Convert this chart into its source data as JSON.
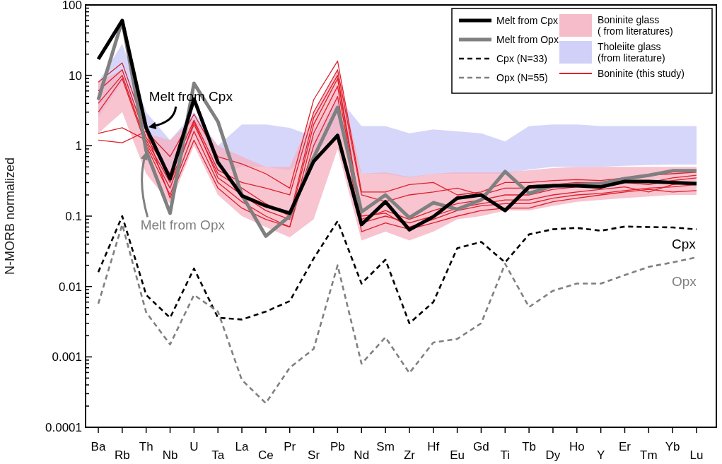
{
  "chart_data": {
    "type": "line",
    "ylabel": "N-MORB normalized",
    "log": true,
    "grid": false,
    "legend": "top right",
    "marker": "none",
    "categories": [
      "Ba",
      "Rb",
      "Th",
      "Nb",
      "U",
      "Ta",
      "La",
      "Ce",
      "Pr",
      "Sr",
      "Pb",
      "Nd",
      "Sm",
      "Zr",
      "Hf",
      "Eu",
      "Gd",
      "Ti",
      "Tb",
      "Dy",
      "Ho",
      "Y",
      "Er",
      "Tm",
      "Yb",
      "Lu"
    ],
    "ylim": [
      0.0001,
      100
    ],
    "yticks": [
      0.0001,
      {
        "value": 0.0002,
        "label": null
      },
      {
        "value": 0.0003,
        "label": null
      },
      {
        "value": 0.0004,
        "label": null
      },
      {
        "value": 0.0005,
        "label": null
      },
      {
        "value": 0.0006,
        "label": null
      },
      {
        "value": 0.0007,
        "label": null
      },
      {
        "value": 0.0008,
        "label": null
      },
      {
        "value": 0.0009,
        "label": null
      },
      0.001,
      {
        "value": 0.002,
        "label": null
      },
      {
        "value": 0.003,
        "label": null
      },
      {
        "value": 0.004,
        "label": null
      },
      {
        "value": 0.005,
        "label": null
      },
      {
        "value": 0.006,
        "label": null
      },
      {
        "value": 0.007,
        "label": null
      },
      {
        "value": 0.008,
        "label": null
      },
      {
        "value": 0.009,
        "label": null
      },
      0.01,
      {
        "value": 0.02,
        "label": null
      },
      {
        "value": 0.03,
        "label": null
      },
      {
        "value": 0.04,
        "label": null
      },
      {
        "value": 0.05,
        "label": null
      },
      {
        "value": 0.06,
        "label": null
      },
      {
        "value": 0.07,
        "label": null
      },
      {
        "value": 0.08,
        "label": null
      },
      {
        "value": 0.09,
        "label": null
      },
      0.1,
      {
        "value": 0.2,
        "label": null
      },
      {
        "value": 0.3,
        "label": null
      },
      {
        "value": 0.4,
        "label": null
      },
      {
        "value": 0.5,
        "label": null
      },
      {
        "value": 0.6,
        "label": null
      },
      {
        "value": 0.7,
        "label": null
      },
      {
        "value": 0.8,
        "label": null
      },
      {
        "value": 0.9,
        "label": null
      },
      1,
      {
        "value": 2,
        "label": null
      },
      {
        "value": 3,
        "label": null
      },
      {
        "value": 4,
        "label": null
      },
      {
        "value": 5,
        "label": null
      },
      {
        "value": 6,
        "label": null
      },
      {
        "value": 7,
        "label": null
      },
      {
        "value": 8,
        "label": null
      },
      {
        "value": 9,
        "label": null
      },
      10,
      {
        "value": 20,
        "label": null
      },
      {
        "value": 30,
        "label": null
      },
      {
        "value": 40,
        "label": null
      },
      {
        "value": 50,
        "label": null
      },
      {
        "value": 60,
        "label": null
      },
      {
        "value": 70,
        "label": null
      },
      {
        "value": 80,
        "label": null
      },
      {
        "value": 90,
        "label": null
      },
      100
    ],
    "series": [
      {
        "name": "Tholeiite glass\n(from literature)",
        "type": "area",
        "color": "#c8c8f8",
        "values": [
          null,
          null,
          null,
          null,
          null,
          null,
          null,
          null,
          null,
          null,
          null,
          null,
          null,
          null,
          null,
          null,
          null,
          null,
          null,
          null,
          null,
          null,
          null,
          null,
          null,
          null
        ],
        "lower": [
          2.5,
          8,
          1.5,
          0.2,
          1.5,
          0.4,
          0.5,
          0.5,
          0.45,
          0.8,
          1.5,
          0.4,
          0.4,
          0.35,
          0.4,
          0.4,
          0.4,
          0.4,
          0.46,
          0.5,
          0.5,
          0.5,
          0.52,
          0.53,
          0.54,
          0.54
        ],
        "upper": [
          8,
          28,
          3,
          1.2,
          3,
          1.0,
          2.0,
          2.0,
          1.8,
          1.35,
          5,
          1.9,
          1.9,
          1.5,
          1.7,
          1.6,
          1.5,
          1.15,
          1.9,
          2.0,
          2.0,
          1.9,
          1.9,
          1.9,
          1.9,
          1.9
        ]
      },
      {
        "name": "Boninite glass\n( from literatures)",
        "type": "area",
        "color": "#f4b0c0",
        "values": [
          null,
          null,
          null,
          null,
          null,
          null,
          null,
          null,
          null,
          null,
          null,
          null,
          null,
          null,
          null,
          null,
          null,
          null,
          null,
          null,
          null,
          null,
          null,
          null,
          null,
          null
        ],
        "lower": [
          1.5,
          3,
          0.4,
          0.15,
          1.0,
          0.2,
          0.1,
          0.07,
          0.05,
          0.09,
          0.9,
          0.045,
          0.06,
          0.045,
          0.06,
          0.09,
          0.1,
          0.12,
          0.12,
          0.14,
          0.16,
          0.17,
          0.18,
          0.19,
          0.2,
          0.2
        ],
        "upper": [
          8,
          12,
          1.5,
          1.2,
          2.5,
          1.0,
          0.7,
          0.5,
          0.5,
          3,
          12,
          0.4,
          0.42,
          0.36,
          0.4,
          0.42,
          0.42,
          0.42,
          0.45,
          0.48,
          0.5,
          0.5,
          0.5,
          0.5,
          0.5,
          0.5
        ]
      },
      {
        "name": "Boninite (this study)",
        "color": "#e0202a",
        "line_style": "solid",
        "values": [
          8,
          15,
          1.6,
          0.7,
          2.8,
          0.7,
          0.55,
          0.4,
          0.25,
          4.5,
          16,
          0.22,
          0.22,
          0.28,
          0.3,
          0.2,
          0.22,
          0.3,
          0.3,
          0.32,
          0.33,
          0.32,
          0.35,
          0.38,
          0.4,
          0.42
        ]
      },
      {
        "color": "#e0202a",
        "line_style": "solid",
        "values": [
          6,
          12,
          1.3,
          0.4,
          2.3,
          0.45,
          0.3,
          0.25,
          0.2,
          3,
          12,
          0.2,
          0.16,
          0.2,
          0.22,
          0.25,
          0.2,
          0.25,
          0.25,
          0.28,
          0.3,
          0.3,
          0.32,
          0.3,
          0.35,
          0.38
        ]
      },
      {
        "color": "#e0202a",
        "line_style": "solid",
        "values": [
          4,
          10,
          1.1,
          0.25,
          2.2,
          0.35,
          0.2,
          0.12,
          0.09,
          2,
          9,
          0.09,
          0.12,
          0.09,
          0.12,
          0.15,
          0.17,
          0.2,
          0.2,
          0.24,
          0.26,
          0.27,
          0.3,
          0.28,
          0.32,
          0.35
        ]
      },
      {
        "color": "#e0202a",
        "line_style": "solid",
        "values": [
          3,
          9,
          1.0,
          0.2,
          1.6,
          0.3,
          0.16,
          0.1,
          0.07,
          1.5,
          7,
          0.08,
          0.1,
          0.08,
          0.1,
          0.13,
          0.15,
          0.17,
          0.17,
          0.2,
          0.22,
          0.24,
          0.26,
          0.22,
          0.28,
          0.3
        ]
      },
      {
        "color": "#e0202a",
        "line_style": "solid",
        "values": [
          1.5,
          1.8,
          1.2,
          0.3,
          2.0,
          0.4,
          0.25,
          0.15,
          0.1,
          2.5,
          10,
          0.1,
          0.11,
          0.07,
          0.09,
          0.12,
          0.14,
          0.15,
          0.15,
          0.18,
          0.2,
          0.21,
          0.23,
          0.25,
          0.26,
          0.28
        ]
      },
      {
        "color": "#e0202a",
        "line_style": "solid",
        "values": [
          1.2,
          1.1,
          1.6,
          0.18,
          1.2,
          0.25,
          0.13,
          0.09,
          0.07,
          1.0,
          5,
          0.06,
          0.08,
          0.065,
          0.08,
          0.1,
          0.12,
          0.13,
          0.13,
          0.16,
          0.18,
          0.2,
          0.22,
          0.24,
          0.22,
          0.23
        ]
      },
      {
        "name": "Melt from Opx",
        "color": "#808080",
        "line_style": "solid",
        "values": [
          4.5,
          60,
          0.85,
          0.11,
          7.7,
          2.2,
          0.2,
          0.052,
          0.1,
          0.68,
          3.5,
          0.115,
          0.2,
          0.095,
          0.155,
          0.125,
          0.17,
          0.43,
          0.21,
          0.27,
          0.28,
          0.29,
          0.34,
          0.38,
          0.44,
          0.44
        ]
      },
      {
        "name": "Melt from Cpx",
        "color": "#000000",
        "line_style": "solid",
        "values": [
          17,
          60,
          1.8,
          0.34,
          4.6,
          0.58,
          0.195,
          0.14,
          0.11,
          0.6,
          1.4,
          0.076,
          0.16,
          0.064,
          0.098,
          0.18,
          0.2,
          0.12,
          0.26,
          0.27,
          0.27,
          0.26,
          0.31,
          0.31,
          0.3,
          0.29
        ]
      },
      {
        "name": "Cpx (N=33)",
        "color": "#000000",
        "line_style": "dashed",
        "values": [
          0.016,
          0.1,
          0.0076,
          0.0036,
          0.018,
          0.0036,
          0.0034,
          0.0044,
          0.0062,
          0.025,
          0.085,
          0.011,
          0.024,
          0.003,
          0.006,
          0.035,
          0.043,
          0.022,
          0.055,
          0.065,
          0.068,
          0.062,
          0.071,
          0.07,
          0.069,
          0.065
        ]
      },
      {
        "name": "Opx (N=55)",
        "color": "#808080",
        "line_style": "dashed",
        "values": [
          0.0057,
          0.076,
          0.0043,
          0.0015,
          0.0076,
          0.0044,
          0.00047,
          0.00022,
          0.0007,
          0.0013,
          0.02,
          0.0008,
          0.0019,
          0.00059,
          0.0016,
          0.0018,
          0.003,
          0.021,
          0.0051,
          0.0087,
          0.011,
          0.011,
          0.0145,
          0.019,
          0.022,
          0.026
        ]
      }
    ],
    "annotations": [
      {
        "text": "Melt from Cpx",
        "x": "Th",
        "y": 1.8
      },
      {
        "text": "Melt from Opx",
        "x": "Th",
        "y": 0.85
      },
      "Cpx",
      "Opx"
    ]
  }
}
